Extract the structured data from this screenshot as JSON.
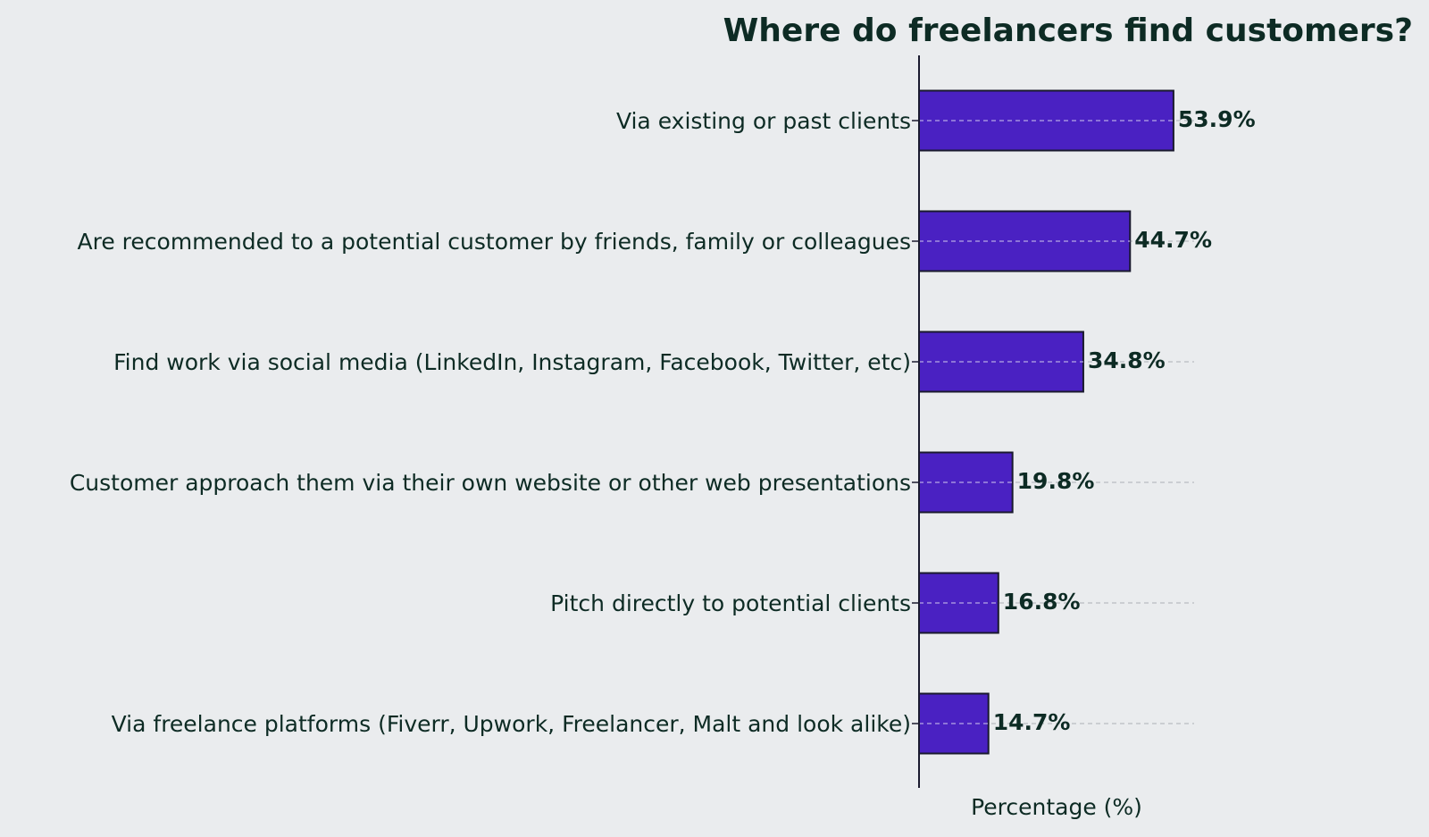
{
  "chart_data": {
    "type": "bar",
    "orientation": "horizontal",
    "title": "Where do freelancers find customers?",
    "xlabel": "Percentage (%)",
    "ylabel": "",
    "categories": [
      "Via existing or past clients",
      "Are recommended to a potential customer by friends, family or colleagues",
      "Find work via social media (LinkedIn, Instagram, Facebook, Twitter, etc)",
      "Customer approach them via their own website or other web presentations",
      "Pitch directly to potential clients",
      "Via freelance platforms (Fiverr, Upwork, Freelancer, Malt and look alike)"
    ],
    "values": [
      53.9,
      44.7,
      34.8,
      19.8,
      16.8,
      14.7
    ],
    "value_labels": [
      "53.9%",
      "44.7%",
      "34.8%",
      "19.8%",
      "16.8%",
      "14.7%"
    ],
    "xlim": [
      0,
      56
    ],
    "grid": "horizontal dashed",
    "bar_color": "#4a21c2",
    "bar_edge_color": "#1a1a2e",
    "text_color": "#0d2b24",
    "background_color": "#eaecee"
  }
}
